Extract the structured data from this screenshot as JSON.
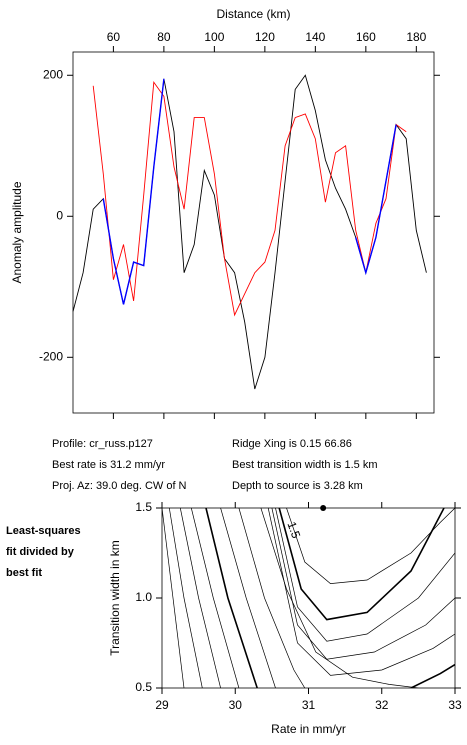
{
  "chart_data": [
    {
      "type": "line",
      "x_label": "Distance (km)",
      "y_label": "Anomaly amplitude",
      "x": [
        44,
        48,
        52,
        56,
        60,
        64,
        68,
        72,
        76,
        80,
        84,
        88,
        92,
        96,
        100,
        104,
        108,
        112,
        116,
        120,
        124,
        128,
        132,
        136,
        140,
        144,
        148,
        152,
        156,
        160,
        164,
        168,
        172,
        176,
        180,
        184
      ],
      "xlim": [
        44,
        187
      ],
      "xticks": [
        60,
        80,
        100,
        120,
        140,
        160,
        180
      ],
      "ylim": [
        -279,
        233
      ],
      "yticks": [
        -200,
        0,
        200
      ],
      "series": [
        {
          "color": "#000000",
          "values": [
            -135,
            -80,
            10,
            25,
            -60,
            -125,
            -65,
            -70,
            70,
            195,
            120,
            -80,
            -40,
            65,
            30,
            -60,
            -80,
            -150,
            -245,
            -200,
            -80,
            50,
            180,
            200,
            150,
            80,
            40,
            10,
            -30,
            -80,
            -30,
            50,
            130,
            110,
            -20,
            -80
          ]
        },
        {
          "color": "#ff0000",
          "values": [
            null,
            null,
            185,
            60,
            -90,
            -40,
            -120,
            30,
            190,
            170,
            70,
            10,
            140,
            140,
            60,
            -60,
            -140,
            -110,
            -80,
            -65,
            -20,
            100,
            140,
            145,
            110,
            20,
            90,
            100,
            -20,
            -80,
            -10,
            25,
            130,
            120,
            null,
            null
          ]
        },
        {
          "color": "#0000ff",
          "values": [
            null,
            null,
            null,
            25,
            -60,
            -125,
            -65,
            -70,
            70,
            195,
            null,
            null,
            null,
            null,
            null,
            null,
            null,
            null,
            null,
            null,
            null,
            null,
            null,
            null,
            null,
            null,
            null,
            null,
            -30,
            -80,
            -30,
            50,
            130,
            null,
            null,
            null
          ]
        }
      ]
    },
    {
      "type": "contour",
      "x_label": "Rate in mm/yr",
      "y_label": "Transition width in km",
      "xlim": [
        29,
        33
      ],
      "xticks": [
        29,
        30,
        31,
        32,
        33
      ],
      "ylim": [
        0.5,
        1.5
      ],
      "yticks": [
        {
          "value": 0.5,
          "label": "0.5"
        },
        {
          "value": 1.0,
          "label": "1.0"
        },
        {
          "value": 1.5,
          "label": "1.5"
        }
      ],
      "contour_label": {
        "text": "1.5",
        "x": 30.75,
        "y": 1.42
      },
      "best_fit": {
        "x": 31.2,
        "y": 1.5
      },
      "contours": [
        {
          "bold": false,
          "x": [
            29.0,
            29.15,
            29.3
          ],
          "y": [
            1.5,
            1.0,
            0.5
          ]
        },
        {
          "bold": false,
          "x": [
            29.1,
            29.3,
            29.55
          ],
          "y": [
            1.5,
            1.0,
            0.5
          ]
        },
        {
          "bold": false,
          "x": [
            29.25,
            29.5,
            29.8
          ],
          "y": [
            1.5,
            1.0,
            0.5
          ]
        },
        {
          "bold": false,
          "x": [
            29.4,
            29.7,
            30.05
          ],
          "y": [
            1.5,
            1.0,
            0.5
          ]
        },
        {
          "bold": true,
          "x": [
            29.6,
            29.9,
            30.3
          ],
          "y": [
            1.5,
            1.0,
            0.5
          ]
        },
        {
          "bold": false,
          "x": [
            29.8,
            30.15,
            30.55
          ],
          "y": [
            1.5,
            1.0,
            0.5
          ]
        },
        {
          "bold": false,
          "x": [
            30.05,
            30.4,
            30.8,
            30.95
          ],
          "y": [
            1.5,
            1.0,
            0.6,
            0.5
          ]
        },
        {
          "bold": false,
          "x": [
            30.35,
            30.7,
            31.1,
            31.6,
            32.1,
            32.5
          ],
          "y": [
            1.5,
            1.05,
            0.7,
            0.56,
            0.52,
            0.5
          ]
        },
        {
          "bold": false,
          "x": [
            30.7,
            30.95,
            31.3,
            31.8,
            32.4,
            32.8,
            33.0
          ],
          "y": [
            1.5,
            1.2,
            1.08,
            1.1,
            1.25,
            1.42,
            1.5
          ]
        },
        {
          "bold": true,
          "x": [
            30.6,
            30.9,
            31.25,
            31.8,
            32.4,
            32.85
          ],
          "y": [
            1.5,
            1.05,
            0.88,
            0.92,
            1.15,
            1.5
          ]
        },
        {
          "bold": false,
          "x": [
            30.55,
            30.85,
            31.25,
            31.8,
            32.5,
            33.0
          ],
          "y": [
            1.5,
            0.95,
            0.76,
            0.8,
            1.0,
            1.25
          ]
        },
        {
          "bold": false,
          "x": [
            30.5,
            30.85,
            31.25,
            31.9,
            32.6,
            33.0
          ],
          "y": [
            1.5,
            0.85,
            0.66,
            0.7,
            0.85,
            1.0
          ]
        },
        {
          "bold": false,
          "x": [
            30.45,
            30.85,
            31.3,
            32.0,
            32.7,
            33.0
          ],
          "y": [
            1.5,
            0.75,
            0.57,
            0.6,
            0.72,
            0.8
          ]
        },
        {
          "bold": true,
          "x": [
            32.4,
            32.8,
            33.0
          ],
          "y": [
            0.5,
            0.58,
            0.63
          ]
        }
      ]
    }
  ],
  "info": {
    "profile": "Profile: cr_russ.p127",
    "rate": "Best rate is 31.2 mm/yr",
    "azimuth": "Proj. Az: 39.0 deg. CW of N",
    "ridge": "Ridge Xing is 0.15 66.86",
    "width": "Best transition width is 1.5 km",
    "depth": "Depth to source is   3.28 km"
  },
  "note": [
    "Least-squares",
    "fit divided by",
    "best fit"
  ]
}
